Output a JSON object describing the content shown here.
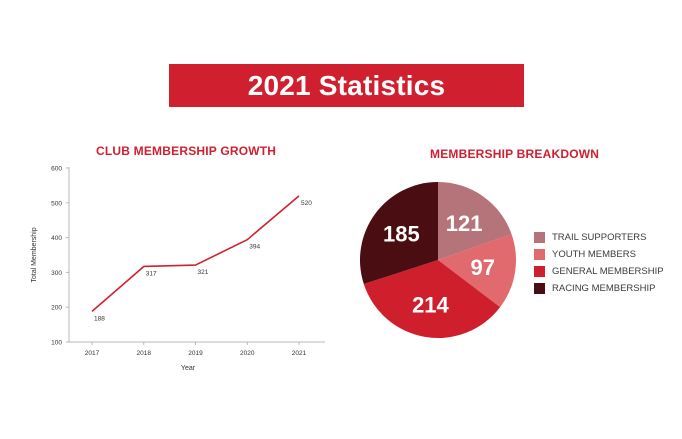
{
  "page": {
    "title": "2021 Statistics"
  },
  "colors": {
    "accent": "#d0202f",
    "banner": "#d0202f",
    "axis": "#b8b8b8",
    "text": "#333333"
  },
  "chart_data": [
    {
      "type": "line",
      "title": "CLUB MEMBERSHIP GROWTH",
      "xlabel": "Year",
      "ylabel": "Total Membership",
      "x": [
        "2017",
        "2018",
        "2019",
        "2020",
        "2021"
      ],
      "series": [
        {
          "values": [
            188,
            317,
            321,
            394,
            520
          ],
          "color": "#d0202f"
        }
      ],
      "ylim": [
        100,
        600
      ],
      "yticks": [
        100,
        200,
        300,
        400,
        500,
        600
      ],
      "grid": false
    },
    {
      "type": "pie",
      "title": "MEMBERSHIP BREAKDOWN",
      "legend_position": "right",
      "slices": [
        {
          "label": "TRAIL SUPPORTERS",
          "value": 121,
          "color": "#b5737a"
        },
        {
          "label": "YOUTH MEMBERS",
          "value": 97,
          "color": "#e06a6e"
        },
        {
          "label": "GENERAL MEMBERSHIP",
          "value": 214,
          "color": "#cf1f2d"
        },
        {
          "label": "RACING MEMBERSHIP",
          "value": 185,
          "color": "#4a0d12"
        }
      ]
    }
  ]
}
